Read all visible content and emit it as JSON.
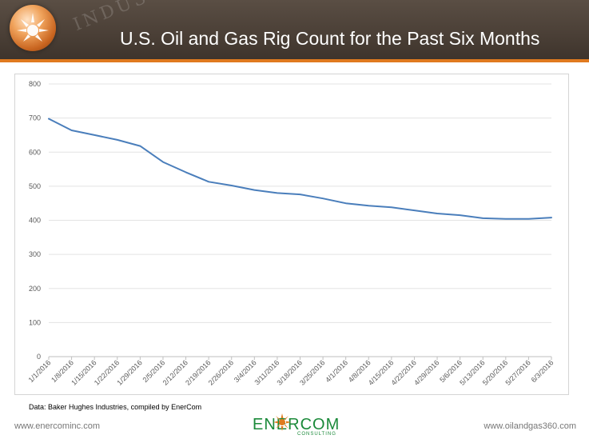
{
  "header": {
    "title": "U.S. Oil and Gas Rig Count for the Past Six Months",
    "watermark": "INDUSTR"
  },
  "source_note": "Data: Baker Hughes Industries, compiled by EnerCom",
  "footer": {
    "left_url": "www.enercominc.com",
    "right_url": "www.oilandgas360.com",
    "logo_text": "ENERCOM",
    "logo_sub": "CONSULTING"
  },
  "colors": {
    "banner": "#4a3f36",
    "accent_stripe": "#e07a1f",
    "series_line": "#4a7ebb",
    "logo_green": "#1b8a3a"
  },
  "chart_data": {
    "type": "line",
    "title": "",
    "xlabel": "",
    "ylabel": "",
    "ylim": [
      0,
      800
    ],
    "yticks": [
      0,
      100,
      200,
      300,
      400,
      500,
      600,
      700,
      800
    ],
    "grid": true,
    "legend": "none",
    "categories": [
      "1/1/2016",
      "1/8/2016",
      "1/15/2016",
      "1/22/2016",
      "1/29/2016",
      "2/5/2016",
      "2/12/2016",
      "2/19/2016",
      "2/26/2016",
      "3/4/2016",
      "3/11/2016",
      "3/18/2016",
      "3/25/2016",
      "4/1/2016",
      "4/8/2016",
      "4/15/2016",
      "4/22/2016",
      "4/29/2016",
      "5/6/2016",
      "5/13/2016",
      "5/20/2016",
      "5/27/2016",
      "6/3/2016"
    ],
    "series": [
      {
        "values": [
          698,
          664,
          650,
          636,
          618,
          571,
          541,
          513,
          502,
          489,
          480,
          476,
          464,
          450,
          443,
          438,
          429,
          420,
          415,
          406,
          404,
          404,
          408
        ]
      }
    ]
  }
}
